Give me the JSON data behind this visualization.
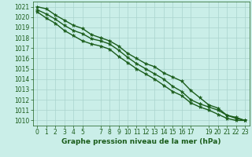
{
  "title": "Graphe pression niveau de la mer (hPa)",
  "background_color": "#caeee8",
  "grid_color": "#aad4ce",
  "line_color": "#1a5c1a",
  "xlim": [
    -0.5,
    23.5
  ],
  "ylim": [
    1009.5,
    1021.5
  ],
  "xticks": [
    0,
    1,
    2,
    3,
    4,
    5,
    7,
    8,
    9,
    10,
    11,
    12,
    13,
    14,
    15,
    16,
    17,
    19,
    20,
    21,
    22,
    23
  ],
  "xtick_labels": [
    "0",
    "1",
    "2",
    "3",
    "4",
    "5",
    "7",
    "8",
    "9",
    "10",
    "11",
    "12",
    "13",
    "14",
    "15",
    "16",
    "17",
    "19",
    "20",
    "21",
    "22",
    "23"
  ],
  "yticks": [
    1010,
    1011,
    1012,
    1013,
    1014,
    1015,
    1016,
    1017,
    1018,
    1019,
    1020,
    1021
  ],
  "series": {
    "line1": [
      1021.0,
      1020.8,
      1020.2,
      1019.7,
      1019.2,
      1018.9,
      1018.3,
      1018.0,
      1017.7,
      1017.2,
      1016.5,
      1016.0,
      1015.5,
      1015.2,
      1014.6,
      1014.2,
      1013.8,
      1012.9,
      1012.2,
      1011.5,
      1011.2,
      1010.5,
      1010.3,
      1010.0
    ],
    "line2": [
      1020.7,
      1020.3,
      1019.8,
      1019.2,
      1018.7,
      1018.4,
      1017.9,
      1017.7,
      1017.4,
      1016.8,
      1016.1,
      1015.5,
      1015.0,
      1014.5,
      1014.0,
      1013.3,
      1012.8,
      1012.0,
      1011.6,
      1011.3,
      1011.0,
      1010.5,
      1010.2,
      1010.0
    ],
    "line3": [
      1020.5,
      1019.9,
      1019.4,
      1018.7,
      1018.2,
      1017.7,
      1017.4,
      1017.2,
      1016.9,
      1016.2,
      1015.6,
      1015.0,
      1014.5,
      1014.0,
      1013.4,
      1012.8,
      1012.4,
      1011.7,
      1011.3,
      1011.0,
      1010.6,
      1010.2,
      1010.0,
      1010.0
    ]
  },
  "marker_size": 3.5,
  "line_width": 1.0,
  "label_fontsize": 5.5,
  "xlabel_fontsize": 6.5
}
